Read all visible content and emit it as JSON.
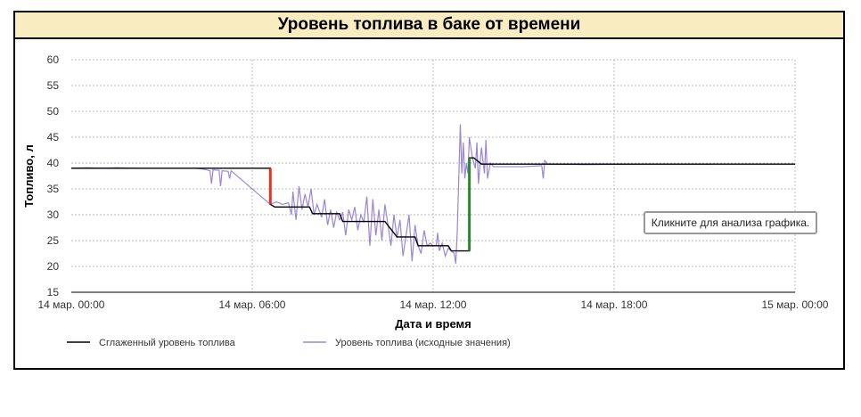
{
  "chart_data": {
    "type": "line",
    "title": "Уровень топлива в баке от времени",
    "xlabel": "Дата и время",
    "ylabel": "Топливо, л",
    "xlim_hours": [
      0,
      24
    ],
    "ylim": [
      15,
      60
    ],
    "y_ticks": [
      15,
      20,
      25,
      30,
      35,
      40,
      45,
      50,
      55,
      60
    ],
    "x_ticks": [
      {
        "h": 0,
        "label": "14 мар. 00:00"
      },
      {
        "h": 6,
        "label": "14 мар. 06:00"
      },
      {
        "h": 12,
        "label": "14 мар. 12:00"
      },
      {
        "h": 18,
        "label": "14 мар. 18:00"
      },
      {
        "h": 24,
        "label": "15 мар. 00:00"
      }
    ],
    "grid": true,
    "legend_position": "bottom-left",
    "series": [
      {
        "name": "Сглаженный уровень топлива",
        "color": "#000000",
        "points": [
          [
            0,
            39
          ],
          [
            6.6,
            39
          ],
          [
            6.6,
            32
          ],
          [
            6.75,
            31.5
          ],
          [
            7.9,
            31.5
          ],
          [
            8.0,
            30.2
          ],
          [
            8.9,
            30.2
          ],
          [
            9.0,
            28.7
          ],
          [
            10.4,
            28.7
          ],
          [
            10.8,
            25.7
          ],
          [
            11.4,
            25.7
          ],
          [
            11.5,
            24
          ],
          [
            12.5,
            24
          ],
          [
            12.6,
            23
          ],
          [
            13.2,
            23
          ],
          [
            13.2,
            41
          ],
          [
            13.35,
            41
          ],
          [
            13.6,
            39.8
          ],
          [
            24,
            39.8
          ]
        ]
      },
      {
        "name": "Уровень топлива (исходные значения)",
        "color": "#9b86d6",
        "segments": [
          [
            [
              0,
              39
            ],
            [
              0.5,
              39.1
            ],
            [
              1,
              39
            ],
            [
              1.5,
              39.1
            ],
            [
              2.2,
              39
            ]
          ],
          [
            [
              4.1,
              39
            ],
            [
              4.4,
              38.8
            ],
            [
              4.6,
              38.5
            ],
            [
              4.65,
              36
            ],
            [
              4.7,
              38.7
            ],
            [
              4.9,
              38.6
            ],
            [
              4.95,
              35.5
            ],
            [
              5.0,
              38.5
            ],
            [
              5.2,
              38.4
            ],
            [
              5.25,
              37
            ],
            [
              5.3,
              38.5
            ],
            [
              6.6,
              32
            ]
          ],
          [
            [
              6.6,
              32
            ],
            [
              6.8,
              32.5
            ],
            [
              7.0,
              32
            ],
            [
              7.2,
              32.3
            ],
            [
              7.3,
              30
            ],
            [
              7.35,
              34.5
            ],
            [
              7.45,
              29
            ],
            [
              7.55,
              35.5
            ],
            [
              7.65,
              31
            ],
            [
              7.75,
              34
            ],
            [
              7.85,
              31.5
            ],
            [
              7.95,
              35
            ],
            [
              8.05,
              30
            ],
            [
              8.15,
              32
            ],
            [
              8.3,
              29.5
            ],
            [
              8.4,
              33
            ],
            [
              8.5,
              28
            ],
            [
              8.6,
              31
            ],
            [
              8.7,
              27.5
            ],
            [
              8.8,
              30.5
            ],
            [
              8.9,
              29
            ],
            [
              9.0,
              30.5
            ],
            [
              9.1,
              26
            ],
            [
              9.2,
              31
            ],
            [
              9.3,
              29
            ],
            [
              9.4,
              31.5
            ],
            [
              9.5,
              27
            ],
            [
              9.6,
              30
            ],
            [
              9.7,
              28.5
            ],
            [
              9.8,
              33.5
            ],
            [
              9.9,
              24
            ],
            [
              10.0,
              33
            ],
            [
              10.1,
              26
            ],
            [
              10.2,
              31
            ],
            [
              10.3,
              25
            ],
            [
              10.4,
              32
            ],
            [
              10.5,
              28
            ],
            [
              10.6,
              24
            ],
            [
              10.7,
              30
            ],
            [
              10.8,
              25.5
            ],
            [
              10.9,
              29
            ],
            [
              11.0,
              22
            ],
            [
              11.1,
              26
            ],
            [
              11.2,
              30
            ],
            [
              11.3,
              21
            ],
            [
              11.4,
              28
            ],
            [
              11.5,
              24
            ],
            [
              11.6,
              22.5
            ],
            [
              11.7,
              27
            ],
            [
              11.8,
              24
            ],
            [
              11.9,
              24.5
            ],
            [
              12.0,
              24
            ],
            [
              12.1,
              24
            ],
            [
              12.15,
              26.5
            ],
            [
              12.2,
              23
            ],
            [
              12.3,
              24.5
            ],
            [
              12.4,
              22
            ],
            [
              12.5,
              23.5
            ],
            [
              12.6,
              23
            ],
            [
              12.7,
              22.5
            ],
            [
              12.75,
              20.5
            ],
            [
              12.8,
              27
            ],
            [
              12.9,
              47.5
            ],
            [
              12.95,
              38
            ],
            [
              13.0,
              44
            ],
            [
              13.05,
              37
            ],
            [
              13.1,
              40
            ],
            [
              13.15,
              38
            ],
            [
              13.2,
              45
            ],
            [
              13.3,
              41
            ],
            [
              13.4,
              39
            ],
            [
              13.45,
              44
            ],
            [
              13.5,
              36
            ],
            [
              13.6,
              43
            ],
            [
              13.7,
              38
            ],
            [
              13.75,
              44.5
            ],
            [
              13.8,
              37
            ],
            [
              13.9,
              40
            ],
            [
              14.0,
              39.3
            ],
            [
              15.0,
              39.3
            ],
            [
              15.6,
              39.5
            ],
            [
              15.65,
              37
            ],
            [
              15.7,
              40.5
            ],
            [
              15.8,
              39.8
            ],
            [
              17,
              39.7
            ],
            [
              19,
              39.8
            ],
            [
              21.2,
              39.8
            ]
          ]
        ]
      }
    ],
    "events": [
      {
        "type": "drain",
        "color": "#e8321e",
        "h": 6.6,
        "from": 39,
        "to": 32
      },
      {
        "type": "refuel",
        "color": "#2a8a2a",
        "h": 13.2,
        "from": 23,
        "to": 41
      }
    ],
    "tooltip": "Кликните для анализа графика."
  }
}
